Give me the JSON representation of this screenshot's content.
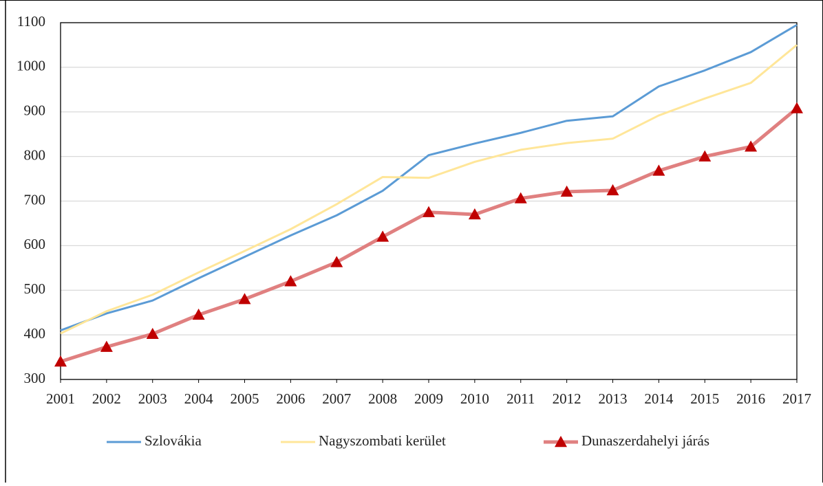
{
  "chart_data": {
    "type": "line",
    "x": [
      2001,
      2002,
      2003,
      2004,
      2005,
      2006,
      2007,
      2008,
      2009,
      2010,
      2011,
      2012,
      2013,
      2014,
      2015,
      2016,
      2017
    ],
    "series": [
      {
        "name": "Szlovákia",
        "color": "#5b9bd5",
        "values": [
          410,
          448,
          477,
          527,
          575,
          623,
          668,
          723,
          803,
          829,
          853,
          880,
          890,
          957,
          993,
          1034,
          1095
        ]
      },
      {
        "name": "Nagyszombati kerület",
        "color": "#ffe699",
        "values": [
          403,
          453,
          490,
          540,
          588,
          637,
          693,
          754,
          752,
          788,
          815,
          830,
          840,
          892,
          930,
          965,
          1050
        ]
      },
      {
        "name": "Dunaszerdahelyi járás",
        "color": "#e08080",
        "marker": "triangle",
        "marker_color": "#c00000",
        "values": [
          340,
          373,
          402,
          445,
          480,
          520,
          563,
          620,
          675,
          670,
          706,
          721,
          724,
          768,
          800,
          822,
          908
        ]
      }
    ],
    "xlim": [
      2001,
      2017
    ],
    "xticks": [
      2001,
      2002,
      2003,
      2004,
      2005,
      2006,
      2007,
      2008,
      2009,
      2010,
      2011,
      2012,
      2013,
      2014,
      2015,
      2016,
      2017
    ],
    "ylim": [
      300,
      1100
    ],
    "yticks": [
      300,
      400,
      500,
      600,
      700,
      800,
      900,
      1000,
      1100
    ],
    "grid": true,
    "legend": "bottom"
  }
}
